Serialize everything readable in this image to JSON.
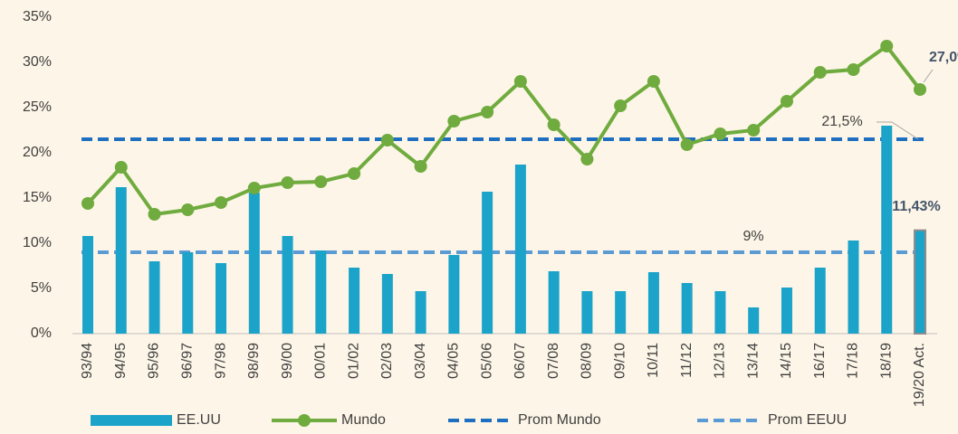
{
  "chart_data": {
    "type": "bar",
    "categories": [
      "93/94",
      "94/95",
      "95/96",
      "96/97",
      "97/98",
      "98/99",
      "99/00",
      "00/01",
      "01/02",
      "02/03",
      "03/04",
      "04/05",
      "05/06",
      "06/07",
      "07/08",
      "08/09",
      "09/10",
      "10/11",
      "11/12",
      "12/13",
      "13/14",
      "14/15",
      "16/17",
      "17/18",
      "18/19",
      "19/20 Act."
    ],
    "series": [
      {
        "name": "EE.UU",
        "type": "bar",
        "color": "#1ba3c9",
        "values": [
          10.8,
          16.2,
          8.0,
          9.0,
          7.8,
          15.6,
          10.8,
          9.2,
          7.3,
          6.6,
          4.7,
          8.7,
          15.7,
          18.7,
          6.9,
          4.7,
          4.7,
          6.8,
          5.6,
          4.7,
          2.9,
          5.1,
          7.3,
          10.3,
          23.0,
          11.43
        ],
        "value_labels": [
          null,
          null,
          null,
          null,
          null,
          null,
          null,
          null,
          null,
          null,
          null,
          null,
          null,
          null,
          null,
          null,
          null,
          null,
          null,
          null,
          null,
          null,
          null,
          null,
          null,
          "11,43%"
        ]
      },
      {
        "name": "Mundo",
        "type": "line",
        "color": "#6fab3e",
        "values": [
          14.4,
          18.4,
          13.2,
          13.7,
          14.5,
          16.1,
          16.7,
          16.8,
          17.7,
          21.4,
          18.5,
          23.5,
          24.5,
          27.9,
          23.1,
          19.3,
          25.2,
          27.9,
          20.9,
          22.1,
          22.5,
          25.7,
          28.9,
          29.2,
          31.8,
          27.0
        ],
        "value_labels": [
          null,
          null,
          null,
          null,
          null,
          null,
          null,
          null,
          null,
          null,
          null,
          null,
          null,
          null,
          null,
          null,
          null,
          null,
          null,
          null,
          null,
          null,
          null,
          null,
          null,
          "27,0%"
        ]
      }
    ],
    "reference_lines": [
      {
        "name": "Prom Mundo",
        "value": 21.5,
        "label": "21,5%",
        "color": "#1f6fc1"
      },
      {
        "name": "Prom EEUU",
        "value": 9,
        "label": "9%",
        "color": "#5b9bd5"
      }
    ],
    "ylim": [
      0,
      35
    ],
    "yticks": [
      {
        "value": 0,
        "label": "0%"
      },
      {
        "value": 5,
        "label": "5%"
      },
      {
        "value": 10,
        "label": "10%"
      },
      {
        "value": 15,
        "label": "15%"
      },
      {
        "value": 20,
        "label": "20%"
      },
      {
        "value": 25,
        "label": "25%"
      },
      {
        "value": 30,
        "label": "30%"
      },
      {
        "value": 35,
        "label": "35%"
      }
    ],
    "legend": "bottom"
  }
}
